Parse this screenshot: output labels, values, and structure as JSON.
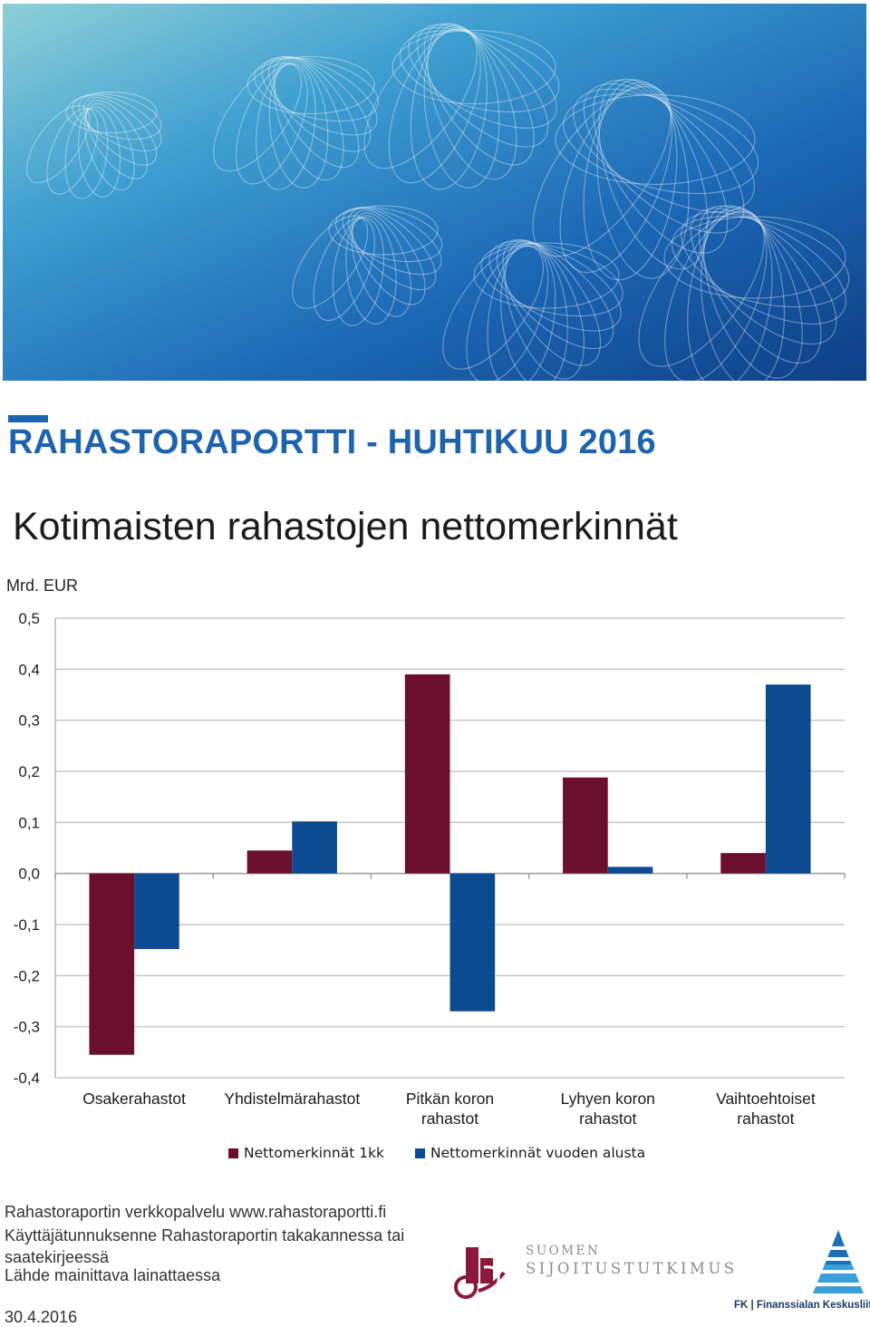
{
  "report": {
    "title": "RAHASTORAPORTTI - HUHTIKUU 2016"
  },
  "colors": {
    "accent": "#1d63ad",
    "series_month": "#6b0f2f",
    "series_ytd": "#0c4a92"
  },
  "chart_data": {
    "type": "bar",
    "title": "Kotimaisten rahastojen nettomerkinnät",
    "unit": "Mrd. EUR",
    "categories": [
      [
        "Osakerahastot"
      ],
      [
        "Yhdistelmärahastot"
      ],
      [
        "Pitkän koron",
        "rahastot"
      ],
      [
        "Lyhyen koron",
        "rahastot"
      ],
      [
        "Vaihtoehtoiset",
        "rahastot"
      ]
    ],
    "series": [
      {
        "name": "Nettomerkinnät 1kk",
        "values": [
          -0.355,
          0.045,
          0.39,
          0.188,
          0.04
        ]
      },
      {
        "name": "Nettomerkinnät vuoden alusta",
        "values": [
          -0.148,
          0.102,
          -0.27,
          0.013,
          0.37
        ]
      }
    ],
    "yticks": [
      "0,5",
      "0,4",
      "0,3",
      "0,2",
      "0,1",
      "0,0",
      "-0,1",
      "-0,2",
      "-0,3",
      "-0,4"
    ],
    "ylim": [
      -0.4,
      0.5
    ],
    "grid": true,
    "legend_position": "bottom"
  },
  "footer": {
    "line1": "Rahastoraportin verkkopalvelu www.rahastoraportti.fi",
    "line2": "Käyttäjätunnuksenne Rahastoraportin takakannessa tai",
    "line3": "saatekirjeessä",
    "line4": "Lähde mainittava lainattaessa",
    "date": "30.4.2016"
  },
  "logos": {
    "sijoitustutkimus": {
      "line1": "SUOMEN",
      "line2": "SIJOITUSTUTKIMUS",
      "icon": "sijoitustutkimus-logo"
    },
    "fk": {
      "name": "FK | Finanssialan Keskusliitto",
      "icon": "fk-logo"
    }
  }
}
